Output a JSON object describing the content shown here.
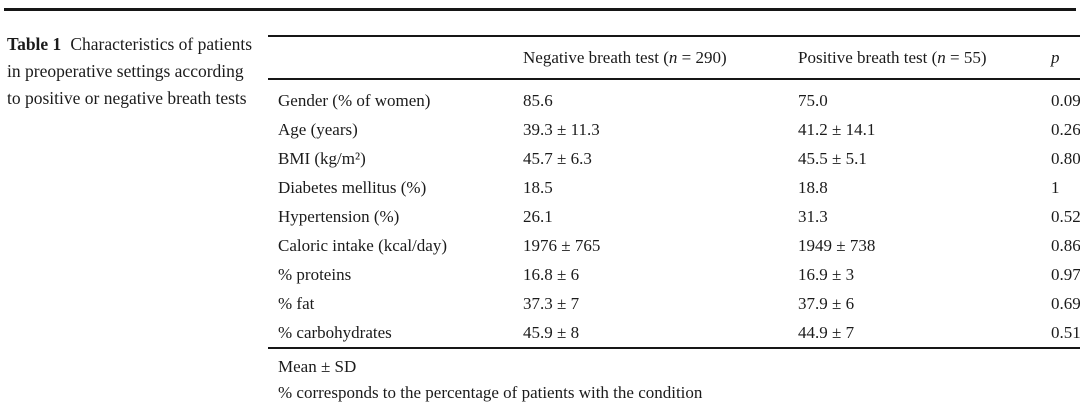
{
  "caption": {
    "label": "Table 1",
    "text": "Characteristics of patients in preoperative settings according to positive or negative breath tests"
  },
  "table": {
    "headers": {
      "label": "",
      "negative": {
        "pre": "Negative breath test (",
        "var": "n",
        "post": " = 290)"
      },
      "positive": {
        "pre": "Positive breath test (",
        "var": "n",
        "post": " = 55)"
      },
      "p": "p"
    },
    "rows": [
      {
        "label": "Gender (% of women)",
        "negative": "85.6",
        "positive": "75.0",
        "p": "0.09"
      },
      {
        "label": "Age (years)",
        "negative": "39.3 ± 11.3",
        "positive": "41.2 ± 14.1",
        "p": "0.26"
      },
      {
        "label": "BMI (kg/m²)",
        "negative": "45.7 ± 6.3",
        "positive": "45.5 ± 5.1",
        "p": "0.80"
      },
      {
        "label": "Diabetes mellitus (%)",
        "negative": "18.5",
        "positive": "18.8",
        "p": "1"
      },
      {
        "label": "Hypertension (%)",
        "negative": "26.1",
        "positive": "31.3",
        "p": "0.52"
      },
      {
        "label": "Caloric intake (kcal/day)",
        "negative": "1976 ± 765",
        "positive": "1949 ± 738",
        "p": "0.86"
      },
      {
        "label": "% proteins",
        "negative": "16.8 ± 6",
        "positive": "16.9 ± 3",
        "p": "0.97"
      },
      {
        "label": "% fat",
        "negative": "37.3 ± 7",
        "positive": "37.9 ± 6",
        "p": "0.69"
      },
      {
        "label": "% carbohydrates",
        "negative": "45.9 ± 8",
        "positive": "44.9 ± 7",
        "p": "0.51"
      }
    ],
    "footnotes": [
      "Mean ± SD",
      "% corresponds to the percentage of patients with the condition"
    ]
  },
  "colors": {
    "background": "#ffffff",
    "text": "#1b1b1b",
    "rule": "#161616"
  }
}
